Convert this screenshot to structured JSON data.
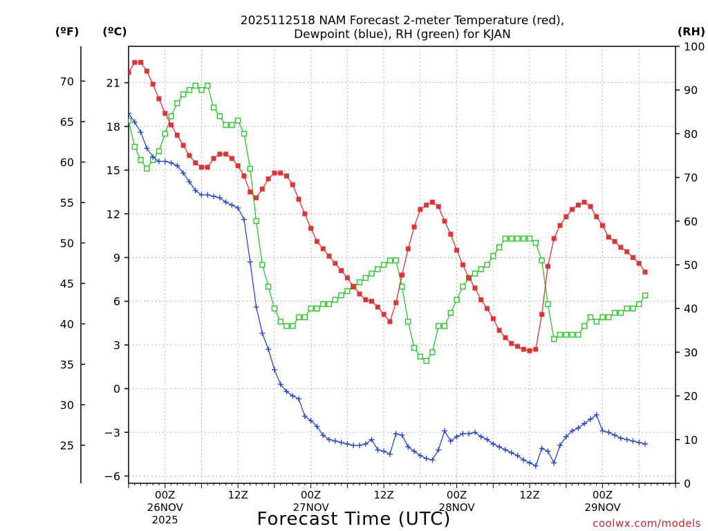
{
  "chart_data": {
    "type": "line",
    "title_lines": [
      "2025112518 NAM Forecast 2-meter Temperature (red),",
      "Dewpoint (blue), RH (green) for KJAN"
    ],
    "units": {
      "fahrenheit": "(ºF)",
      "celsius": "(ºC)",
      "rh": "(RH)"
    },
    "xlabel": "Forecast Time (UTC)",
    "credit": "coolwx.com/models",
    "x_unit": "forecast hour from 2025-11-25 18Z",
    "xlim": [
      0,
      90
    ],
    "x_ticks": [
      {
        "hour": 6,
        "lines": [
          "00Z",
          "26NOV",
          "2025"
        ]
      },
      {
        "hour": 18,
        "lines": [
          "12Z"
        ]
      },
      {
        "hour": 30,
        "lines": [
          "00Z",
          "27NOV"
        ]
      },
      {
        "hour": 42,
        "lines": [
          "12Z"
        ]
      },
      {
        "hour": 54,
        "lines": [
          "00Z",
          "28NOV"
        ]
      },
      {
        "hour": 66,
        "lines": [
          "12Z"
        ]
      },
      {
        "hour": 78,
        "lines": [
          "00Z",
          "29NOV"
        ]
      }
    ],
    "celsius_axis": {
      "lim": [
        -6.5,
        23.5
      ],
      "ticks": [
        "-6",
        "-3",
        "0",
        "3",
        "6",
        "9",
        "12",
        "15",
        "18",
        "21"
      ]
    },
    "fahrenheit_axis": {
      "lim": [
        20.3,
        74.3
      ],
      "ticks": [
        "25",
        "30",
        "35",
        "40",
        "45",
        "50",
        "55",
        "60",
        "65",
        "70"
      ]
    },
    "rh_axis": {
      "lim": [
        0,
        100
      ],
      "ticks": [
        "0",
        "10",
        "20",
        "30",
        "40",
        "50",
        "60",
        "70",
        "80",
        "90",
        "100"
      ]
    },
    "series": [
      {
        "name": "2-meter Temperature",
        "axis": "celsius",
        "color": "#e83030",
        "marker": "filled-square",
        "values": [
          21.7,
          22.4,
          22.4,
          21.8,
          20.9,
          19.9,
          18.9,
          18.1,
          17.4,
          16.7,
          16.0,
          15.5,
          15.2,
          15.2,
          15.8,
          16.1,
          16.1,
          15.8,
          15.3,
          14.6,
          13.5,
          13.1,
          13.7,
          14.4,
          14.8,
          14.8,
          14.6,
          14.0,
          13.0,
          12.0,
          11.0,
          10.1,
          9.6,
          9.1,
          8.6,
          8.1,
          7.6,
          7.0,
          6.5,
          6.1,
          6.0,
          5.6,
          5.1,
          4.6,
          5.9,
          7.8,
          9.6,
          11.1,
          12.3,
          12.6,
          12.8,
          12.5,
          11.5,
          10.6,
          9.5,
          8.5,
          7.6,
          6.9,
          6.1,
          5.5,
          4.8,
          4.0,
          3.5,
          3.1,
          2.9,
          2.7,
          2.6,
          2.7,
          5.1,
          8.4,
          10.3,
          11.2,
          11.8,
          12.3,
          12.6,
          12.8,
          12.5,
          11.8,
          11.2,
          10.4,
          10.1,
          9.7,
          9.4,
          9.0,
          8.6,
          8.0
        ]
      },
      {
        "name": "Dewpoint",
        "axis": "celsius",
        "color": "#2244ee",
        "marker": "plus",
        "values": [
          18.9,
          18.3,
          17.6,
          16.5,
          15.9,
          15.6,
          15.6,
          15.5,
          15.3,
          14.8,
          14.2,
          13.6,
          13.3,
          13.3,
          13.2,
          13.1,
          12.8,
          12.6,
          12.4,
          11.6,
          8.7,
          5.6,
          3.8,
          2.7,
          1.3,
          0.3,
          -0.2,
          -0.5,
          -0.7,
          -1.9,
          -2.2,
          -2.6,
          -3.2,
          -3.5,
          -3.6,
          -3.7,
          -3.8,
          -3.9,
          -3.9,
          -3.8,
          -3.5,
          -4.2,
          -4.3,
          -4.5,
          -3.1,
          -3.2,
          -4.0,
          -4.3,
          -4.6,
          -4.8,
          -4.9,
          -4.2,
          -2.9,
          -3.6,
          -3.3,
          -3.1,
          -3.1,
          -3.0,
          -3.3,
          -3.5,
          -3.8,
          -4.0,
          -4.2,
          -4.4,
          -4.6,
          -4.9,
          -5.1,
          -5.3,
          -4.1,
          -4.3,
          -5.1,
          -3.9,
          -3.3,
          -2.9,
          -2.7,
          -2.4,
          -2.1,
          -1.8,
          -2.9,
          -3.0,
          -3.2,
          -3.4,
          -3.5,
          -3.6,
          -3.7,
          -3.8
        ]
      },
      {
        "name": "RH",
        "axis": "rh",
        "color": "#22cc22",
        "marker": "open-square",
        "values": [
          83,
          77,
          74,
          72,
          74,
          76,
          80,
          84,
          87,
          89,
          90,
          91,
          90,
          91,
          86,
          84,
          82,
          82,
          83,
          80,
          72,
          60,
          50,
          45,
          40,
          37,
          36,
          36,
          38,
          38,
          40,
          40,
          41,
          41,
          42,
          43,
          44,
          45,
          46,
          47,
          48,
          49,
          50,
          51,
          51,
          45,
          37,
          31,
          29,
          28,
          30,
          36,
          36,
          39,
          42,
          45,
          47,
          48,
          49,
          50,
          52,
          54,
          56,
          56,
          56,
          56,
          56,
          55,
          51,
          41,
          33,
          34,
          34,
          34,
          34,
          36,
          38,
          37,
          38,
          38,
          39,
          39,
          40,
          40,
          41,
          43
        ]
      }
    ]
  }
}
